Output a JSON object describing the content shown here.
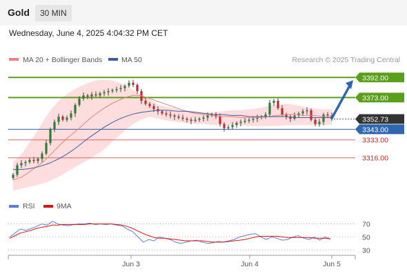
{
  "header": {
    "symbol": "Gold",
    "timeframe": "30 MIN",
    "datetime": "Wednesday, June 4, 2025 4:04:32 PM CET"
  },
  "legend": {
    "ma20_bb": "MA 20 + Bollinger Bands",
    "ma50": "MA 50",
    "credit": "Research © 2025 Trading Central"
  },
  "colors": {
    "resistance": "#5a9e1a",
    "support": "#e06060",
    "ma50": "#3b5ea0",
    "ma20": "#f08080",
    "bands": "#fdd7d7",
    "candle_up": "#2e7d32",
    "candle_down": "#c62828",
    "arrow": "#2f66b0",
    "rsi": "#5b7fd6",
    "rsi_ma": "#e01010",
    "current": "#333333"
  },
  "chart_data": [
    {
      "type": "candlestick",
      "ylim": [
        3293,
        3400
      ],
      "x_ticks": [
        "Jun 3",
        "Jun 4",
        "Jun 5"
      ],
      "current_price": 3352.73,
      "levels": [
        {
          "value": 3392.0,
          "label": "3392.00",
          "kind": "resistance"
        },
        {
          "value": 3373.0,
          "label": "3373.00",
          "kind": "resistance"
        },
        {
          "value": 3343.0,
          "label": "3343.00",
          "kind": "pivot"
        },
        {
          "value": 3333.0,
          "label": "3333.00",
          "kind": "support"
        },
        {
          "value": 3316.0,
          "label": "3316.00",
          "kind": "support"
        }
      ],
      "close_path": [
        3300,
        3309,
        3311,
        3312,
        3314,
        3313,
        3315,
        3320,
        3330,
        3343,
        3350,
        3355,
        3352,
        3354,
        3358,
        3366,
        3372,
        3375,
        3374,
        3376,
        3375,
        3377,
        3378,
        3379,
        3380,
        3381,
        3382,
        3384,
        3387,
        3385,
        3379,
        3370,
        3367,
        3365,
        3362,
        3360,
        3358,
        3357,
        3356,
        3355,
        3354,
        3353,
        3352,
        3351,
        3352,
        3353,
        3354,
        3356,
        3357,
        3355,
        3348,
        3344,
        3345,
        3347,
        3349,
        3350,
        3351,
        3352,
        3353,
        3354,
        3355,
        3357,
        3368,
        3370,
        3363,
        3357,
        3355,
        3353,
        3356,
        3358,
        3360,
        3361,
        3352,
        3348,
        3350,
        3357,
        3356,
        3353
      ],
      "ma20_path": [
        3295,
        3298,
        3304,
        3310,
        3318,
        3327,
        3335,
        3342,
        3350,
        3357,
        3363,
        3368,
        3372,
        3375,
        3375,
        3372,
        3369,
        3366,
        3363,
        3360,
        3358,
        3357,
        3356,
        3355,
        3355,
        3354,
        3354,
        3354,
        3355,
        3356,
        3357,
        3357,
        3356,
        3356,
        3355,
        3355
      ],
      "bb_upper_path": [
        3312,
        3320,
        3333,
        3346,
        3360,
        3370,
        3377,
        3382,
        3386,
        3389,
        3390,
        3389,
        3386,
        3381,
        3376,
        3371,
        3366,
        3364,
        3362,
        3361,
        3360,
        3359,
        3359,
        3360,
        3361,
        3361,
        3362,
        3363,
        3365,
        3366,
        3367,
        3366,
        3364,
        3363,
        3362,
        3362
      ],
      "bb_lower_path": [
        3285,
        3287,
        3289,
        3291,
        3294,
        3298,
        3303,
        3308,
        3313,
        3318,
        3324,
        3332,
        3340,
        3347,
        3352,
        3355,
        3353,
        3351,
        3350,
        3349,
        3348,
        3348,
        3347,
        3347,
        3347,
        3347,
        3346,
        3346,
        3346,
        3346,
        3347,
        3347,
        3347,
        3347,
        3347,
        3347
      ],
      "ma50_path": [
        3305,
        3305,
        3306,
        3308,
        3311,
        3315,
        3320,
        3326,
        3333,
        3339,
        3345,
        3350,
        3354,
        3357,
        3359,
        3360,
        3361,
        3361,
        3360,
        3360,
        3359,
        3358,
        3357,
        3357,
        3356,
        3356,
        3355,
        3355,
        3355,
        3355,
        3355,
        3354,
        3354,
        3354,
        3354,
        3354
      ],
      "projection": {
        "from": 3352.73,
        "to": 3392.0
      }
    },
    {
      "type": "line",
      "name": "RSI panel",
      "ylim": [
        25,
        80
      ],
      "y_ticks": [
        30,
        50,
        70
      ],
      "series": [
        {
          "name": "RSI",
          "values": [
            50,
            56,
            62,
            60,
            63,
            66,
            70,
            68,
            74,
            70,
            68,
            67,
            69,
            70,
            70,
            71,
            69,
            70,
            69,
            70,
            68,
            67,
            62,
            58,
            50,
            42,
            46,
            44,
            50,
            48,
            46,
            42,
            40,
            42,
            44,
            45,
            42,
            40,
            41,
            43,
            42,
            44,
            46,
            50,
            52,
            54,
            55,
            50,
            46,
            50,
            48,
            45,
            46,
            50,
            52,
            48,
            46,
            50,
            45,
            50,
            47
          ]
        },
        {
          "name": "9MA",
          "values": [
            48,
            52,
            56,
            58,
            60,
            63,
            65,
            66,
            68,
            68,
            69,
            69,
            69,
            69,
            69,
            70,
            70,
            70,
            70,
            70,
            69,
            68,
            66,
            63,
            59,
            55,
            52,
            49,
            48,
            48,
            47,
            46,
            45,
            44,
            44,
            44,
            44,
            43,
            42,
            42,
            42,
            43,
            44,
            45,
            46,
            48,
            50,
            51,
            51,
            51,
            51,
            50,
            49,
            49,
            49,
            49,
            49,
            48,
            48,
            48,
            47
          ]
        }
      ]
    }
  ]
}
